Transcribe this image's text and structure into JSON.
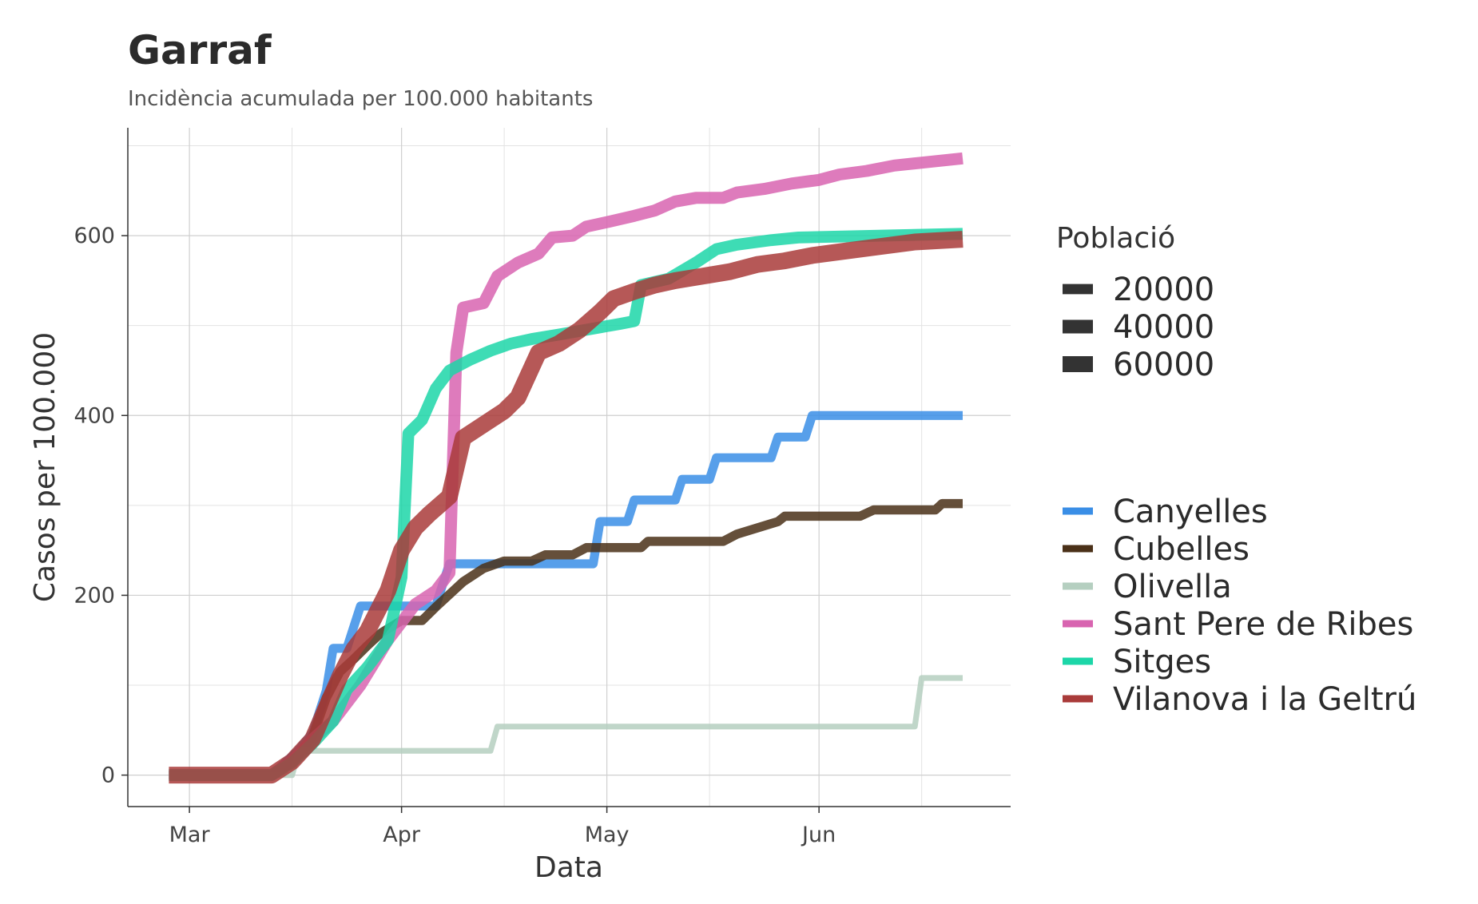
{
  "chart_data": {
    "type": "line",
    "title": "Garraf",
    "subtitle": "Incidència acumulada per 100.000 habitants",
    "xlabel": "Data",
    "ylabel": "Casos per 100.000",
    "x_ticks": [
      {
        "date": "2020-03-01",
        "label": "Mar"
      },
      {
        "date": "2020-04-01",
        "label": "Apr"
      },
      {
        "date": "2020-05-01",
        "label": "May"
      },
      {
        "date": "2020-06-01",
        "label": "Jun"
      }
    ],
    "y_ticks": [
      0,
      200,
      400,
      600
    ],
    "xlim": [
      "2020-02-21",
      "2020-06-29"
    ],
    "ylim": [
      -35,
      720
    ],
    "grid": true,
    "legend_position": "right",
    "size_legend": {
      "title": "Població",
      "entries": [
        {
          "label": "20000",
          "population": 20000
        },
        {
          "label": "40000",
          "population": 40000
        },
        {
          "label": "60000",
          "population": 60000
        }
      ]
    },
    "series": [
      {
        "name": "Canyelles",
        "color": "#3a8ee6",
        "population": 14000,
        "points": [
          [
            "2020-02-27",
            0
          ],
          [
            "2020-03-13",
            0
          ],
          [
            "2020-03-17",
            28
          ],
          [
            "2020-03-19",
            47
          ],
          [
            "2020-03-21",
            94
          ],
          [
            "2020-03-22",
            141
          ],
          [
            "2020-03-24",
            141
          ],
          [
            "2020-03-26",
            188
          ],
          [
            "2020-04-06",
            188
          ],
          [
            "2020-04-07",
            212
          ],
          [
            "2020-04-08",
            235
          ],
          [
            "2020-04-29",
            235
          ],
          [
            "2020-04-30",
            282
          ],
          [
            "2020-05-04",
            282
          ],
          [
            "2020-05-05",
            306
          ],
          [
            "2020-05-11",
            306
          ],
          [
            "2020-05-12",
            329
          ],
          [
            "2020-05-16",
            329
          ],
          [
            "2020-05-17",
            353
          ],
          [
            "2020-05-25",
            353
          ],
          [
            "2020-05-26",
            376
          ],
          [
            "2020-05-30",
            376
          ],
          [
            "2020-05-31",
            400
          ],
          [
            "2020-06-22",
            400
          ]
        ]
      },
      {
        "name": "Cubelles",
        "color": "#4a3018",
        "population": 15000,
        "points": [
          [
            "2020-02-27",
            0
          ],
          [
            "2020-03-13",
            0
          ],
          [
            "2020-03-16",
            14
          ],
          [
            "2020-03-19",
            43
          ],
          [
            "2020-03-21",
            86
          ],
          [
            "2020-03-23",
            115
          ],
          [
            "2020-03-25",
            129
          ],
          [
            "2020-03-27",
            144
          ],
          [
            "2020-03-29",
            158
          ],
          [
            "2020-04-01",
            172
          ],
          [
            "2020-04-04",
            172
          ],
          [
            "2020-04-06",
            187
          ],
          [
            "2020-04-10",
            215
          ],
          [
            "2020-04-13",
            230
          ],
          [
            "2020-04-16",
            238
          ],
          [
            "2020-04-20",
            238
          ],
          [
            "2020-04-22",
            245
          ],
          [
            "2020-04-26",
            245
          ],
          [
            "2020-04-28",
            253
          ],
          [
            "2020-05-06",
            253
          ],
          [
            "2020-05-07",
            260
          ],
          [
            "2020-05-18",
            260
          ],
          [
            "2020-05-20",
            268
          ],
          [
            "2020-05-23",
            275
          ],
          [
            "2020-05-26",
            282
          ],
          [
            "2020-05-27",
            288
          ],
          [
            "2020-06-07",
            288
          ],
          [
            "2020-06-09",
            295
          ],
          [
            "2020-06-18",
            295
          ],
          [
            "2020-06-19",
            302
          ],
          [
            "2020-06-22",
            302
          ]
        ]
      },
      {
        "name": "Olivella",
        "color": "#b5cfc0",
        "population": 3700,
        "points": [
          [
            "2020-02-27",
            0
          ],
          [
            "2020-03-16",
            0
          ],
          [
            "2020-03-17",
            27
          ],
          [
            "2020-04-14",
            27
          ],
          [
            "2020-04-15",
            54
          ],
          [
            "2020-06-15",
            54
          ],
          [
            "2020-06-16",
            108
          ],
          [
            "2020-06-22",
            108
          ]
        ]
      },
      {
        "name": "Sant Pere de Ribes",
        "color": "#d864b0",
        "population": 30000,
        "points": [
          [
            "2020-02-27",
            0
          ],
          [
            "2020-03-13",
            0
          ],
          [
            "2020-03-16",
            16
          ],
          [
            "2020-03-19",
            40
          ],
          [
            "2020-03-22",
            60
          ],
          [
            "2020-03-24",
            80
          ],
          [
            "2020-03-26",
            100
          ],
          [
            "2020-03-28",
            125
          ],
          [
            "2020-03-30",
            150
          ],
          [
            "2020-04-01",
            170
          ],
          [
            "2020-04-03",
            190
          ],
          [
            "2020-04-06",
            205
          ],
          [
            "2020-04-08",
            225
          ],
          [
            "2020-04-09",
            470
          ],
          [
            "2020-04-10",
            520
          ],
          [
            "2020-04-13",
            525
          ],
          [
            "2020-04-15",
            555
          ],
          [
            "2020-04-18",
            570
          ],
          [
            "2020-04-21",
            580
          ],
          [
            "2020-04-23",
            598
          ],
          [
            "2020-04-26",
            600
          ],
          [
            "2020-04-28",
            610
          ],
          [
            "2020-05-01",
            615
          ],
          [
            "2020-05-05",
            622
          ],
          [
            "2020-05-08",
            628
          ],
          [
            "2020-05-11",
            638
          ],
          [
            "2020-05-14",
            642
          ],
          [
            "2020-05-18",
            642
          ],
          [
            "2020-05-20",
            648
          ],
          [
            "2020-05-24",
            652
          ],
          [
            "2020-05-28",
            658
          ],
          [
            "2020-06-01",
            662
          ],
          [
            "2020-06-04",
            668
          ],
          [
            "2020-06-08",
            672
          ],
          [
            "2020-06-12",
            678
          ],
          [
            "2020-06-17",
            682
          ],
          [
            "2020-06-22",
            686
          ]
        ]
      },
      {
        "name": "Sitges",
        "color": "#1cd6a8",
        "population": 29000,
        "points": [
          [
            "2020-02-27",
            0
          ],
          [
            "2020-03-13",
            0
          ],
          [
            "2020-03-16",
            14
          ],
          [
            "2020-03-19",
            35
          ],
          [
            "2020-03-22",
            60
          ],
          [
            "2020-03-24",
            95
          ],
          [
            "2020-03-27",
            120
          ],
          [
            "2020-03-30",
            150
          ],
          [
            "2020-04-01",
            220
          ],
          [
            "2020-04-02",
            380
          ],
          [
            "2020-04-04",
            395
          ],
          [
            "2020-04-06",
            430
          ],
          [
            "2020-04-08",
            450
          ],
          [
            "2020-04-11",
            462
          ],
          [
            "2020-04-14",
            472
          ],
          [
            "2020-04-17",
            480
          ],
          [
            "2020-04-20",
            485
          ],
          [
            "2020-04-24",
            490
          ],
          [
            "2020-04-27",
            494
          ],
          [
            "2020-04-30",
            498
          ],
          [
            "2020-05-03",
            502
          ],
          [
            "2020-05-05",
            505
          ],
          [
            "2020-05-06",
            545
          ],
          [
            "2020-05-10",
            552
          ],
          [
            "2020-05-14",
            570
          ],
          [
            "2020-05-17",
            585
          ],
          [
            "2020-05-20",
            590
          ],
          [
            "2020-05-25",
            595
          ],
          [
            "2020-05-29",
            598
          ],
          [
            "2020-06-22",
            602
          ]
        ]
      },
      {
        "name": "Vilanova i la Geltrú",
        "color": "#a93b3a",
        "population": 67000,
        "points": [
          [
            "2020-02-27",
            0
          ],
          [
            "2020-03-13",
            0
          ],
          [
            "2020-03-16",
            15
          ],
          [
            "2020-03-19",
            40
          ],
          [
            "2020-03-21",
            75
          ],
          [
            "2020-03-23",
            110
          ],
          [
            "2020-03-25",
            140
          ],
          [
            "2020-03-27",
            160
          ],
          [
            "2020-03-30",
            205
          ],
          [
            "2020-04-01",
            250
          ],
          [
            "2020-04-03",
            275
          ],
          [
            "2020-04-05",
            290
          ],
          [
            "2020-04-08",
            310
          ],
          [
            "2020-04-10",
            375
          ],
          [
            "2020-04-13",
            390
          ],
          [
            "2020-04-16",
            405
          ],
          [
            "2020-04-18",
            420
          ],
          [
            "2020-04-21",
            470
          ],
          [
            "2020-04-24",
            480
          ],
          [
            "2020-04-27",
            495
          ],
          [
            "2020-04-30",
            515
          ],
          [
            "2020-05-02",
            530
          ],
          [
            "2020-05-05",
            538
          ],
          [
            "2020-05-08",
            545
          ],
          [
            "2020-05-11",
            550
          ],
          [
            "2020-05-15",
            555
          ],
          [
            "2020-05-19",
            560
          ],
          [
            "2020-05-23",
            568
          ],
          [
            "2020-05-27",
            572
          ],
          [
            "2020-05-31",
            578
          ],
          [
            "2020-06-05",
            583
          ],
          [
            "2020-06-10",
            588
          ],
          [
            "2020-06-15",
            593
          ],
          [
            "2020-06-22",
            596
          ]
        ]
      }
    ]
  }
}
